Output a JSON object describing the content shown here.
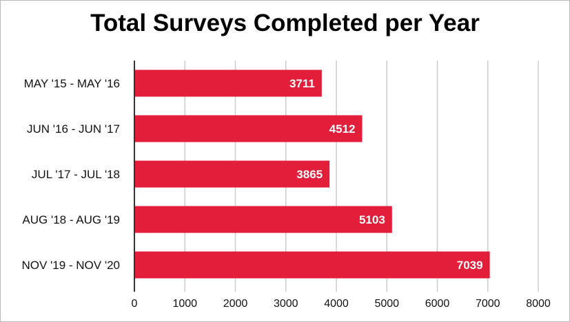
{
  "chart_data": {
    "type": "bar",
    "orientation": "horizontal",
    "title": "Total Surveys Completed per Year",
    "categories": [
      "MAY '15 - MAY '16",
      "JUN '16 - JUN '17",
      "JUL '17 - JUL '18",
      "AUG '18 - AUG '19",
      "NOV '19 - NOV '20"
    ],
    "values": [
      3711,
      4512,
      3865,
      5103,
      7039
    ],
    "data_labels": [
      "3711",
      "4512",
      "3865",
      "5103",
      "7039"
    ],
    "xlim": [
      0,
      8000
    ],
    "x_ticks": [
      0,
      1000,
      2000,
      3000,
      4000,
      5000,
      6000,
      7000,
      8000
    ],
    "x_tick_labels": [
      "0",
      "1000",
      "2000",
      "3000",
      "4000",
      "5000",
      "6000",
      "7000",
      "8000"
    ],
    "grid": "vertical",
    "bar_color": "#e31e3b",
    "grid_color": "#cccccc",
    "axis_color": "#333333"
  }
}
